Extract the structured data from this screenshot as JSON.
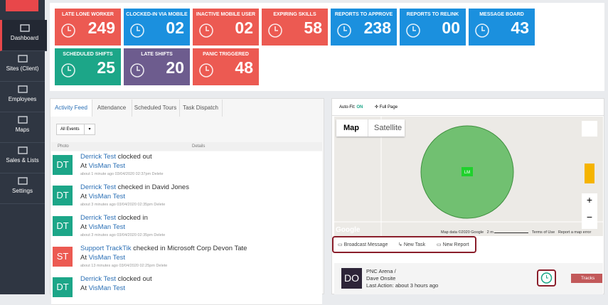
{
  "sidebar": {
    "items": [
      "Dashboard",
      "Sites (Client)",
      "Employees",
      "Maps",
      "Sales & Lists",
      "Settings"
    ]
  },
  "tiles": [
    {
      "label": "LATE LONE WORKER",
      "value": "249",
      "color": "#ec5a52"
    },
    {
      "label": "CLOCKED-IN VIA MOBILE",
      "value": "02",
      "color": "#1b90de"
    },
    {
      "label": "INACTIVE MOBILE USER",
      "value": "02",
      "color": "#ec5a52"
    },
    {
      "label": "EXPIRING SKILLS",
      "value": "58",
      "color": "#ec5a52"
    },
    {
      "label": "REPORTS TO APPROVE",
      "value": "238",
      "color": "#1b90de"
    },
    {
      "label": "REPORTS TO RELINK",
      "value": "00",
      "color": "#1b90de"
    },
    {
      "label": "MESSAGE BOARD",
      "value": "43",
      "color": "#1b90de"
    },
    {
      "label": "SCHEDULED SHIFTS",
      "value": "25",
      "color": "#1ca688"
    },
    {
      "label": "LATE SHIFTS",
      "value": "20",
      "color": "#6d5c8e"
    },
    {
      "label": "PANIC TRIGGERED",
      "value": "48",
      "color": "#ec5a52"
    }
  ],
  "feed": {
    "tabs": [
      "Activity Feed",
      "Attendance",
      "Scheduled Tours",
      "Task Dispatch"
    ],
    "filter": "All Events",
    "headers": [
      "Photo",
      "Details"
    ],
    "items": [
      {
        "initials": "DT",
        "color": "#1ca688",
        "name": "Derrick Test",
        "action": "clocked out",
        "at": "At",
        "site": "VisMan Test",
        "ago": "about 1 minute ago",
        "date": "03/04/2020 02:37pm",
        "delete": "Delete"
      },
      {
        "initials": "DT",
        "color": "#1ca688",
        "name": "Derrick Test",
        "action": "checked in David Jones",
        "at": "At",
        "site": "VisMan Test",
        "ago": "about 3 minutes ago",
        "date": "03/04/2020 02:35pm",
        "delete": "Delete"
      },
      {
        "initials": "DT",
        "color": "#1ca688",
        "name": "Derrick Test",
        "action": "clocked in",
        "at": "At",
        "site": "VisMan Test",
        "ago": "about 3 minutes ago",
        "date": "03/04/2020 02:35pm",
        "delete": "Delete"
      },
      {
        "initials": "ST",
        "color": "#ec5a52",
        "name": "Support TrackTik",
        "action": "checked in Microsoft Corp Devon Tate",
        "at": "At",
        "site": "VisMan Test",
        "ago": "about 13 minutes ago",
        "date": "03/04/2020 02:25pm",
        "delete": "Delete"
      },
      {
        "initials": "DT",
        "color": "#1ca688",
        "name": "Derrick Test",
        "action": "clocked out",
        "at": "At",
        "site": "VisMan Test"
      }
    ]
  },
  "map": {
    "autofit_label": "Auto-Fit:",
    "autofit_state": "ON",
    "full_page": "Full Page",
    "types": [
      "Map",
      "Satellite"
    ],
    "marker": "LM",
    "google": "Google",
    "footer": [
      "Map data ©2020 Google",
      "2 m",
      "Terms of Use",
      "Report a map error"
    ],
    "actions": [
      "Broadcast Message",
      "New Task",
      "New Report"
    ],
    "card": {
      "initials": "DO",
      "line1": "PNC Arena /",
      "line2": "Dave Onsite",
      "line3": "Last Action: about 3 hours ago",
      "tracks": "Tracks"
    }
  }
}
